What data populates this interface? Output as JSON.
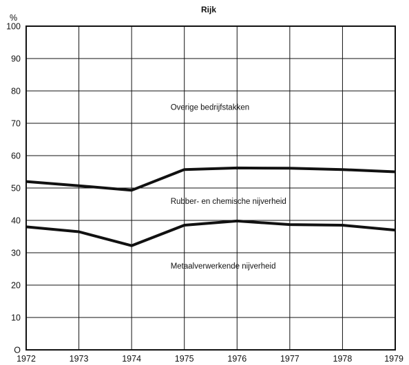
{
  "chart_data": {
    "type": "line",
    "title": "Rijk",
    "y_unit_label": "%",
    "xlabel": "",
    "ylabel": "",
    "x": [
      1972,
      1973,
      1974,
      1975,
      1976,
      1977,
      1978,
      1979
    ],
    "x_tick_labels": [
      "1972",
      "1973",
      "1974",
      "1975",
      "1976",
      "1977",
      "1978",
      "1979"
    ],
    "ylim": [
      0,
      100
    ],
    "y_ticks": [
      0,
      10,
      20,
      30,
      40,
      50,
      60,
      70,
      80,
      90,
      100
    ],
    "y_tick_labels": [
      "O",
      "10",
      "20",
      "30",
      "40",
      "50",
      "60",
      "70",
      "80",
      "90",
      "100"
    ],
    "grid": true,
    "series": [
      {
        "values": [
          52.0,
          50.7,
          49.3,
          55.7,
          56.2,
          56.1,
          55.7,
          55.0
        ]
      },
      {
        "values": [
          38.0,
          36.5,
          32.2,
          38.5,
          39.8,
          38.7,
          38.5,
          37.0
        ]
      }
    ],
    "annotations": [
      {
        "text": "Overige bedrijfstakken",
        "x": 1975.0,
        "y": 75
      },
      {
        "text": "Rubber- en chemische nijverheid",
        "x": 1975.0,
        "y": 46
      },
      {
        "text": "Metaalverwerkende nijverheid",
        "x": 1975.0,
        "y": 26
      }
    ],
    "colors": {
      "line": "#111111",
      "grid": "#111111"
    }
  }
}
